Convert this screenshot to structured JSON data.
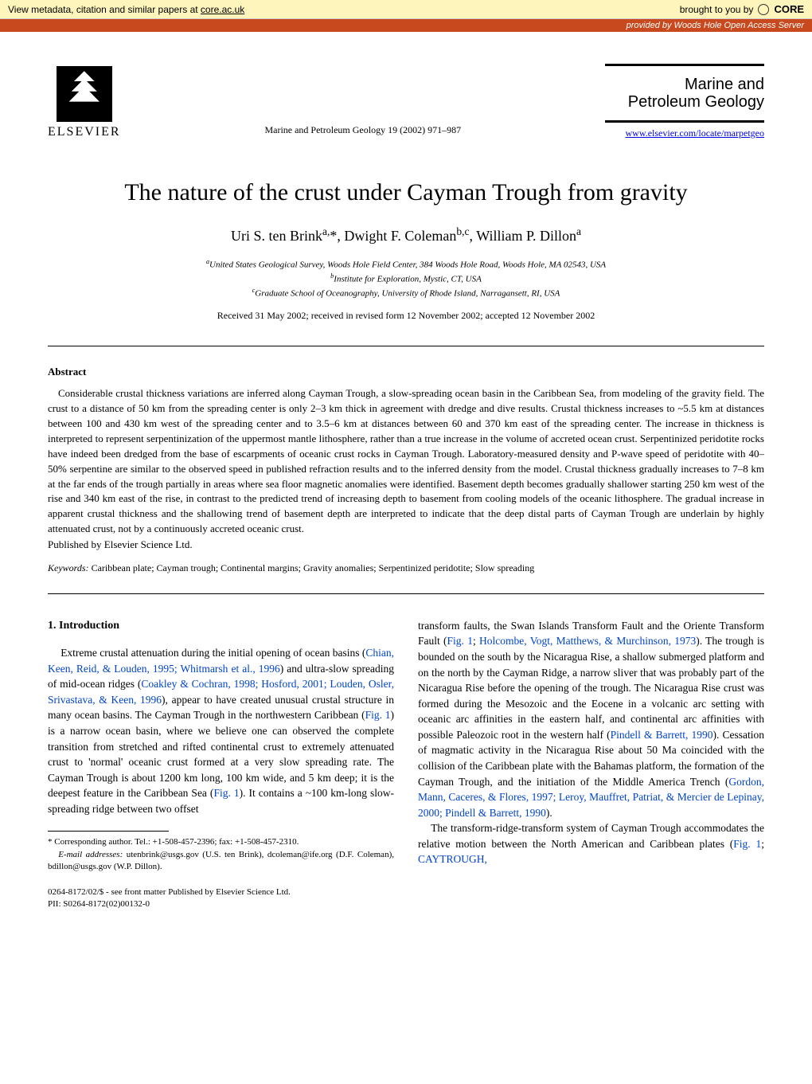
{
  "core": {
    "metadata_text": "View metadata, citation and similar papers at ",
    "metadata_link": "core.ac.uk",
    "brought": "brought to you by ",
    "logo_text": "CORE",
    "provided": "provided by Woods Hole Open Access Server"
  },
  "header": {
    "publisher": "ELSEVIER",
    "journal_ref": "Marine and Petroleum Geology 19 (2002) 971–987",
    "journal_title_1": "Marine and",
    "journal_title_2": "Petroleum Geology",
    "url": "www.elsevier.com/locate/marpetgeo"
  },
  "article": {
    "title": "The nature of the crust under Cayman Trough from gravity",
    "authors_html": "Uri S. ten Brink<sup>a,</sup>*, Dwight F. Coleman<sup>b,c</sup>, William P. Dillon<sup>a</sup>",
    "aff_a": "United States Geological Survey, Woods Hole Field Center, 384 Woods Hole Road, Woods Hole, MA 02543, USA",
    "aff_b": "Institute for Exploration, Mystic, CT, USA",
    "aff_c": "Graduate School of Oceanography, University of Rhode Island, Narragansett, RI, USA",
    "received": "Received 31 May 2002; received in revised form 12 November 2002; accepted 12 November 2002"
  },
  "abstract": {
    "heading": "Abstract",
    "body": "Considerable crustal thickness variations are inferred along Cayman Trough, a slow-spreading ocean basin in the Caribbean Sea, from modeling of the gravity field. The crust to a distance of 50 km from the spreading center is only 2–3 km thick in agreement with dredge and dive results. Crustal thickness increases to ~5.5 km at distances between 100 and 430 km west of the spreading center and to 3.5–6 km at distances between 60 and 370 km east of the spreading center. The increase in thickness is interpreted to represent serpentinization of the uppermost mantle lithosphere, rather than a true increase in the volume of accreted ocean crust. Serpentinized peridotite rocks have indeed been dredged from the base of escarpments of oceanic crust rocks in Cayman Trough. Laboratory-measured density and P-wave speed of peridotite with 40–50% serpentine are similar to the observed speed in published refraction results and to the inferred density from the model. Crustal thickness gradually increases to 7–8 km at the far ends of the trough partially in areas where sea floor magnetic anomalies were identified. Basement depth becomes gradually shallower starting 250 km west of the rise and 340 km east of the rise, in contrast to the predicted trend of increasing depth to basement from cooling models of the oceanic lithosphere. The gradual increase in apparent crustal thickness and the shallowing trend of basement depth are interpreted to indicate that the deep distal parts of Cayman Trough are underlain by highly attenuated crust, not by a continuously accreted oceanic crust.",
    "publisher": "Published by Elsevier Science Ltd.",
    "keywords_label": "Keywords:",
    "keywords": "Caribbean plate; Cayman trough; Continental margins; Gravity anomalies; Serpentinized peridotite; Slow spreading"
  },
  "intro": {
    "heading": "1. Introduction",
    "col1_p1_pre": "Extreme crustal attenuation during the initial opening of ocean basins (",
    "ref1": "Chian, Keen, Reid, & Louden, 1995; Whitmarsh et al., 1996",
    "col1_p1_mid1": ") and ultra-slow spreading of mid-ocean ridges (",
    "ref2": "Coakley & Cochran, 1998; Hosford, 2001; Louden, Osler, Srivastava, & Keen, 1996",
    "col1_p1_mid2": "), appear to have created unusual crustal structure in many ocean basins. The Cayman Trough in the northwestern Caribbean (",
    "ref3": "Fig. 1",
    "col1_p1_mid3": ") is a narrow ocean basin, where we believe one can observed the complete transition from stretched and rifted continental crust to extremely attenuated crust to 'normal' oceanic crust formed at a very slow spreading rate. The Cayman Trough is about 1200 km long, 100 km wide, and 5 km deep; it is the deepest feature in the Caribbean Sea (",
    "ref4": "Fig. 1",
    "col1_p1_end": "). It contains a ~100 km-long slow-spreading ridge between two offset",
    "col2_p1_pre": "transform faults, the Swan Islands Transform Fault and the Oriente Transform Fault (",
    "ref5": "Fig. 1",
    "col2_sep1": "; ",
    "ref6": "Holcombe, Vogt, Matthews, & Murchinson, 1973",
    "col2_p1_mid1": "). The trough is bounded on the south by the Nicaragua Rise, a shallow submerged platform and on the north by the Cayman Ridge, a narrow sliver that was probably part of the Nicaragua Rise before the opening of the trough. The Nicaragua Rise crust was formed during the Mesozoic and the Eocene in a volcanic arc setting with oceanic arc affinities in the eastern half, and continental arc affinities with possible Paleozoic root in the western half (",
    "ref7": "Pindell & Barrett, 1990",
    "col2_p1_mid2": "). Cessation of magmatic activity in the Nicaragua Rise about 50 Ma coincided with the collision of the Caribbean plate with the Bahamas platform, the formation of the Cayman Trough, and the initiation of the Middle America Trench (",
    "ref8": "Gordon, Mann, Caceres, & Flores, 1997; Leroy, Mauffret, Patriat, & Mercier de Lepinay, 2000; Pindell & Barrett, 1990",
    "col2_p1_end": ").",
    "col2_p2_pre": "The transform-ridge-transform system of Cayman Trough accommodates the relative motion between the North American and Caribbean plates (",
    "ref9": "Fig. 1",
    "col2_sep2": "; ",
    "ref10": "CAYTROUGH,"
  },
  "footnotes": {
    "corr": "* Corresponding author. Tel.: +1-508-457-2396; fax: +1-508-457-2310.",
    "email_label": "E-mail addresses:",
    "emails": " utenbrink@usgs.gov (U.S. ten Brink), dcoleman@ife.org (D.F. Coleman), bdillon@usgs.gov (W.P. Dillon)."
  },
  "copyright": {
    "line1": "0264-8172/02/$ - see front matter Published by Elsevier Science Ltd.",
    "line2": "PII: S0264-8172(02)00132-0"
  }
}
